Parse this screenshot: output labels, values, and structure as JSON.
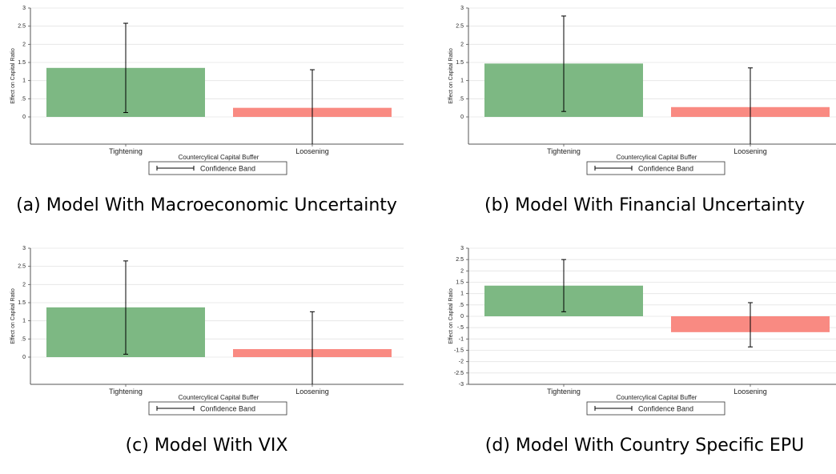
{
  "colors": {
    "tightening": "#7db883",
    "loosening": "#f98a82",
    "grid": "#e4e4e4",
    "axis": "#555555",
    "whisker": "#000000"
  },
  "chart_data": [
    {
      "type": "bar",
      "caption": "(a) Model With Macroeconomic Uncertainty",
      "categories": [
        "Tightening",
        "Loosening"
      ],
      "values": [
        1.35,
        0.25
      ],
      "ci_lower": [
        0.12,
        -0.75
      ],
      "ci_upper": [
        2.58,
        1.3
      ],
      "ylim": [
        -0.75,
        3
      ],
      "yticks": [
        "3",
        "2.5",
        "2",
        "1.5",
        "1",
        ".5",
        "0"
      ],
      "ytick_values": [
        3,
        2.5,
        2,
        1.5,
        1,
        0.5,
        0
      ],
      "xlabel": "Countercylical Capital Buffer",
      "ylabel": "Effect on Capital Ratio",
      "legend": "Confidence Band",
      "grid": true
    },
    {
      "type": "bar",
      "caption": "(b) Model With Financial Uncertainty",
      "categories": [
        "Tightening",
        "Loosening"
      ],
      "values": [
        1.47,
        0.27
      ],
      "ci_lower": [
        0.15,
        -0.75
      ],
      "ci_upper": [
        2.78,
        1.35
      ],
      "ylim": [
        -0.75,
        3
      ],
      "yticks": [
        "3",
        "2.5",
        "2",
        "1.5",
        "1",
        ".5",
        "0"
      ],
      "ytick_values": [
        3,
        2.5,
        2,
        1.5,
        1,
        0.5,
        0
      ],
      "xlabel": "Countercylical Capital Buffer",
      "ylabel": "Effect on Capital Ratio",
      "legend": "Confidence Band",
      "grid": true
    },
    {
      "type": "bar",
      "caption": "(c) Model With VIX",
      "categories": [
        "Tightening",
        "Loosening"
      ],
      "values": [
        1.37,
        0.22
      ],
      "ci_lower": [
        0.08,
        -0.75
      ],
      "ci_upper": [
        2.65,
        1.25
      ],
      "ylim": [
        -0.75,
        3
      ],
      "yticks": [
        "3",
        "2.5",
        "2",
        "1.5",
        "1",
        ".5",
        "0"
      ],
      "ytick_values": [
        3,
        2.5,
        2,
        1.5,
        1,
        0.5,
        0
      ],
      "xlabel": "Countercylical Capital Buffer",
      "ylabel": "Effect on Capital Ratio",
      "legend": "Confidence Band",
      "grid": true
    },
    {
      "type": "bar",
      "caption": "(d) Model With Country Specific EPU",
      "categories": [
        "Tightening",
        "Loosening"
      ],
      "values": [
        1.35,
        -0.7
      ],
      "ci_lower": [
        0.2,
        -1.35
      ],
      "ci_upper": [
        2.5,
        0.6
      ],
      "ylim": [
        -3,
        3
      ],
      "yticks": [
        "3",
        "2.5",
        "2",
        "1.5",
        "1",
        ".5",
        "0",
        "-.5",
        "-1",
        "-1.5",
        "-2",
        "-2.5",
        "-3"
      ],
      "ytick_values": [
        3,
        2.5,
        2,
        1.5,
        1,
        0.5,
        0,
        -0.5,
        -1,
        -1.5,
        -2,
        -2.5,
        -3
      ],
      "xlabel": "Countercylical Capital Buffer",
      "ylabel": "Effect on Capital Ratio",
      "legend": "Confidence Band",
      "grid": true
    }
  ]
}
